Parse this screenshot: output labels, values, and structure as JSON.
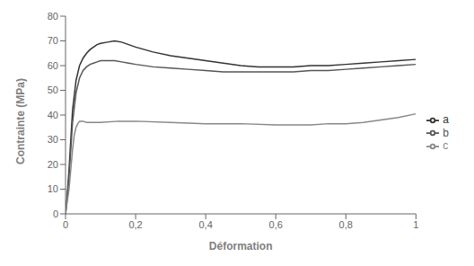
{
  "chart_data": {
    "type": "line",
    "xlabel": "Déformation",
    "ylabel": "Contrainte (MPa)",
    "xlim": [
      0,
      1.0
    ],
    "ylim": [
      0,
      80
    ],
    "xticks": [
      0,
      {
        "value": 0.2,
        "label": "0,2"
      },
      {
        "value": 0.4,
        "label": "0,4"
      },
      {
        "value": 0.6,
        "label": "0,6"
      },
      {
        "value": 0.8,
        "label": "0,8"
      },
      1
    ],
    "yticks": [
      0,
      10,
      20,
      30,
      40,
      50,
      60,
      70,
      80
    ],
    "grid": false,
    "legend": "right",
    "series": [
      {
        "name": "a",
        "color": "#333333",
        "x": [
          0,
          0.005,
          0.01,
          0.015,
          0.02,
          0.03,
          0.04,
          0.05,
          0.06,
          0.07,
          0.08,
          0.09,
          0.1,
          0.12,
          0.14,
          0.16,
          0.18,
          0.2,
          0.25,
          0.3,
          0.35,
          0.4,
          0.45,
          0.5,
          0.55,
          0.6,
          0.65,
          0.7,
          0.75,
          0.8,
          0.85,
          0.9,
          0.95,
          1.0
        ],
        "values": [
          0,
          8,
          18,
          30,
          42,
          54,
          60,
          63,
          65,
          66.5,
          67.5,
          68.5,
          69,
          69.5,
          70,
          69.5,
          68.5,
          67.5,
          65.5,
          64,
          63,
          62,
          61,
          60,
          59.5,
          59.5,
          59.5,
          60,
          60,
          60.5,
          61,
          61.5,
          62,
          62.5
        ]
      },
      {
        "name": "b",
        "color": "#555555",
        "x": [
          0,
          0.005,
          0.01,
          0.015,
          0.02,
          0.03,
          0.04,
          0.05,
          0.06,
          0.07,
          0.08,
          0.09,
          0.1,
          0.12,
          0.14,
          0.16,
          0.18,
          0.2,
          0.25,
          0.3,
          0.35,
          0.4,
          0.45,
          0.5,
          0.55,
          0.6,
          0.65,
          0.7,
          0.75,
          0.8,
          0.85,
          0.9,
          0.95,
          1.0
        ],
        "values": [
          0,
          7,
          15,
          26,
          37,
          49,
          55,
          58,
          59.5,
          60.5,
          61,
          61.5,
          62,
          62,
          62,
          61.5,
          61,
          60.5,
          59.5,
          59,
          58.5,
          58,
          57.5,
          57.5,
          57.5,
          57.5,
          57.5,
          58,
          58,
          58.5,
          59,
          59.5,
          60,
          60.5
        ]
      },
      {
        "name": "c",
        "color": "#888888",
        "x": [
          0,
          0.005,
          0.01,
          0.015,
          0.02,
          0.025,
          0.03,
          0.035,
          0.04,
          0.05,
          0.06,
          0.07,
          0.08,
          0.1,
          0.15,
          0.2,
          0.3,
          0.4,
          0.5,
          0.6,
          0.7,
          0.75,
          0.8,
          0.85,
          0.9,
          0.95,
          1.0
        ],
        "values": [
          0,
          5,
          10,
          18,
          26,
          32,
          35,
          36.5,
          37.5,
          37.5,
          37,
          37,
          37,
          37,
          37.5,
          37.5,
          37,
          36.5,
          36.5,
          36,
          36,
          36.5,
          36.5,
          37,
          38,
          39,
          40.5
        ]
      }
    ]
  }
}
